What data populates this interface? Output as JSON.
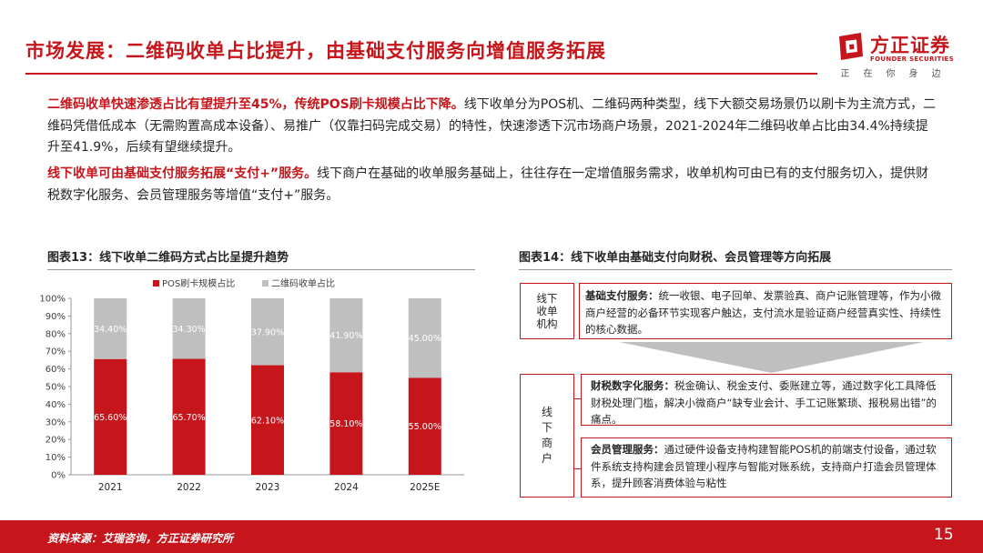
{
  "header": {
    "title": "市场发展：二维码收单占比提升，由基础支付服务向增值服务拓展"
  },
  "logo": {
    "name_cn": "方正证券",
    "name_en": "FOUNDER SECURITIES",
    "slogan": "正在你身边",
    "color": "#c6161b"
  },
  "body": {
    "para1": {
      "highlight": "二维码收单快速渗透占比有望提升至45%，传统POS刷卡规模占比下降。",
      "text": "线下收单分为POS机、二维码两种类型，线下大额交易场景仍以刷卡为主流方式，二维码凭借低成本（无需购置高成本设备）、易推广（仅靠扫码完成交易）的特性，快速渗透下沉市场商户场景，2021-2024年二维码收单占比由34.4%持续提升至41.9%，后续有望继续提升。"
    },
    "para2": {
      "highlight": "线下收单可由基础支付服务拓展“支付+”服务。",
      "text": "线下商户在基础的收单服务基础上，往往存在一定增值服务需求，收单机构可由已有的支付服务切入，提供财税数字化服务、会员管理服务等增值“支付+”服务。"
    }
  },
  "figure13": {
    "title": "图表13：线下收单二维码方式占比呈提升趋势"
  },
  "chart_data": {
    "type": "bar",
    "stacked": true,
    "categories": [
      "2021",
      "2022",
      "2023",
      "2024",
      "2025E"
    ],
    "series": [
      {
        "name": "POS刷卡规模占比",
        "values": [
          65.6,
          65.7,
          62.1,
          58.1,
          55.0
        ],
        "labels": [
          "65.60%",
          "65.70%",
          "62.10%",
          "58.10%",
          "55.00%"
        ],
        "color": "#c6161b"
      },
      {
        "name": "二维码收单占比",
        "values": [
          34.4,
          34.3,
          37.9,
          41.9,
          45.0
        ],
        "labels": [
          "34.40%",
          "34.30%",
          "37.90%",
          "41.90%",
          "45.00%"
        ],
        "color": "#bfbfbf"
      }
    ],
    "ylim": [
      0,
      100
    ],
    "yticks": [
      "0%",
      "10%",
      "20%",
      "30%",
      "40%",
      "50%",
      "60%",
      "70%",
      "80%",
      "90%",
      "100%"
    ],
    "legend_position": "top",
    "grid": false
  },
  "figure14": {
    "title": "图表14：线下收单由基础支付向财税、会员管理等方向拓展",
    "org_label": [
      "线",
      "下",
      "收",
      "单",
      "机",
      "构"
    ],
    "merchant_label": [
      "线",
      "下",
      "商",
      "户"
    ],
    "basic": {
      "head": "基础支付服务：",
      "text": "统一收银、电子回单、发票验真、商户记账管理等，作为小微商户经营的必备环节实现客户触达，支付流水是验证商户经营真实性、持续性的核心数据。"
    },
    "tax": {
      "head": "财税数字化服务：",
      "text": "税金确认、税金支付、委账建立等，通过数字化工具降低财税处理门槛，解决小微商户“缺专业会计、手工记账繁琐、报税易出错”的痛点。"
    },
    "member": {
      "head": "会员管理服务：",
      "text": "通过硬件设备支持构建智能POS机的前端支付设备，通过软件系统支持构建会员管理小程序与智能对账系统，支持商户打造会员管理体系，提升顾客消费体验与粘性"
    },
    "arrow_color": "#bfbfbf"
  },
  "footer": {
    "source": "资料来源：艾瑞咨询，方正证券研究所",
    "page": "15"
  }
}
